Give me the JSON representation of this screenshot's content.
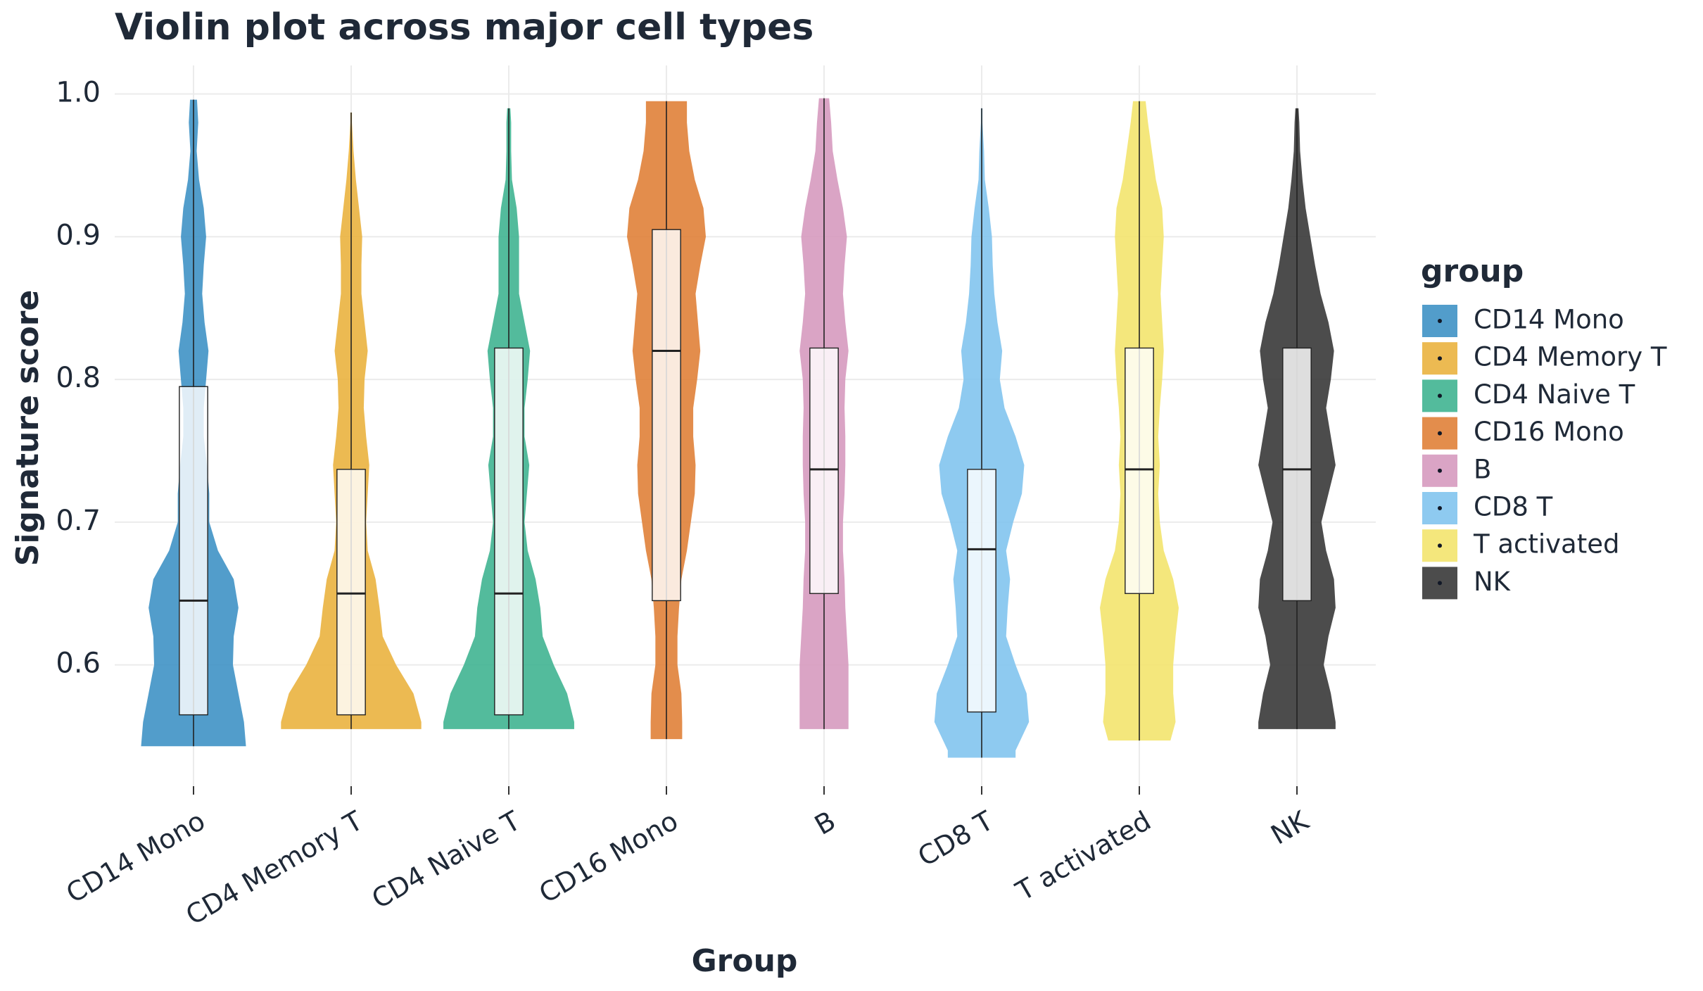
{
  "chart_data": {
    "type": "violin",
    "title": "Violin plot across major cell types",
    "x_label": "Group",
    "y_label": "Signature score",
    "legend_title": "group",
    "legend_position": "right",
    "grid": true,
    "categories": [
      "CD14 Mono",
      "CD4 Memory T",
      "CD4 Naive T",
      "CD16 Mono",
      "B",
      "CD8 T",
      "T activated",
      "NK"
    ],
    "ylim": [
      0.515,
      1.02
    ],
    "yticks": [
      0.6,
      0.7,
      0.8,
      0.9,
      {
        "value": 1.0,
        "label": "1.0"
      }
    ],
    "density_y": [
      0.54,
      0.56,
      0.58,
      0.6,
      0.62,
      0.64,
      0.66,
      0.68,
      0.7,
      0.72,
      0.74,
      0.76,
      0.78,
      0.8,
      0.82,
      0.84,
      0.86,
      0.88,
      0.9,
      0.92,
      0.94,
      0.96,
      0.98,
      1.0
    ],
    "series": [
      {
        "name": "CD14 Mono",
        "color": "#3a8fc4",
        "range": [
          0.543,
          0.996
        ],
        "box": [
          0.565,
          0.645,
          0.795
        ],
        "density": [
          0.67,
          0.64,
          0.57,
          0.5,
          0.51,
          0.57,
          0.51,
          0.31,
          0.2,
          0.2,
          0.17,
          0.13,
          0.13,
          0.16,
          0.19,
          0.14,
          0.11,
          0.13,
          0.16,
          0.13,
          0.07,
          0.04,
          0.06,
          0.04
        ]
      },
      {
        "name": "CD4 Memory T",
        "color": "#e9b13a",
        "range": [
          0.555,
          0.987
        ],
        "box": [
          0.565,
          0.65,
          0.737
        ],
        "density": [
          0.89,
          0.89,
          0.79,
          0.57,
          0.4,
          0.36,
          0.31,
          0.21,
          0.19,
          0.21,
          0.23,
          0.19,
          0.16,
          0.17,
          0.21,
          0.17,
          0.13,
          0.13,
          0.14,
          0.1,
          0.06,
          0.03,
          0.01,
          0.01
        ]
      },
      {
        "name": "CD4 Naive T",
        "color": "#3bb28e",
        "range": [
          0.555,
          0.99
        ],
        "box": [
          0.565,
          0.65,
          0.822
        ],
        "density": [
          0.83,
          0.83,
          0.74,
          0.57,
          0.43,
          0.4,
          0.34,
          0.24,
          0.2,
          0.23,
          0.26,
          0.2,
          0.2,
          0.24,
          0.27,
          0.2,
          0.13,
          0.13,
          0.13,
          0.1,
          0.04,
          0.03,
          0.03,
          0.01
        ]
      },
      {
        "name": "CD16 Mono",
        "color": "#df7d33",
        "range": [
          0.548,
          0.995
        ],
        "box": [
          0.645,
          0.82,
          0.905
        ],
        "density": [
          0.2,
          0.2,
          0.19,
          0.14,
          0.14,
          0.16,
          0.19,
          0.26,
          0.31,
          0.36,
          0.37,
          0.34,
          0.34,
          0.39,
          0.43,
          0.4,
          0.37,
          0.43,
          0.5,
          0.47,
          0.36,
          0.29,
          0.26,
          0.26
        ]
      },
      {
        "name": "B",
        "color": "#d597bd",
        "range": [
          0.555,
          0.997
        ],
        "box": [
          0.65,
          0.737,
          0.822
        ],
        "density": [
          0.31,
          0.31,
          0.31,
          0.31,
          0.29,
          0.27,
          0.26,
          0.24,
          0.24,
          0.26,
          0.27,
          0.27,
          0.26,
          0.27,
          0.31,
          0.27,
          0.24,
          0.26,
          0.29,
          0.24,
          0.17,
          0.11,
          0.09,
          0.06
        ]
      },
      {
        "name": "CD8 T",
        "color": "#7ec3ee",
        "range": [
          0.535,
          0.99
        ],
        "box": [
          0.567,
          0.681,
          0.737
        ],
        "density": [
          0.43,
          0.6,
          0.57,
          0.43,
          0.31,
          0.33,
          0.36,
          0.31,
          0.4,
          0.51,
          0.54,
          0.43,
          0.29,
          0.23,
          0.26,
          0.2,
          0.16,
          0.14,
          0.13,
          0.09,
          0.04,
          0.03,
          0.01,
          0.01
        ]
      },
      {
        "name": "T activated",
        "color": "#f2e46a",
        "range": [
          0.547,
          0.995
        ],
        "box": [
          0.65,
          0.737,
          0.822
        ],
        "density": [
          0.36,
          0.46,
          0.43,
          0.43,
          0.46,
          0.5,
          0.43,
          0.31,
          0.26,
          0.24,
          0.26,
          0.24,
          0.26,
          0.29,
          0.31,
          0.29,
          0.27,
          0.29,
          0.31,
          0.29,
          0.21,
          0.16,
          0.11,
          0.07
        ]
      },
      {
        "name": "NK",
        "color": "#333333",
        "range": [
          0.555,
          0.99
        ],
        "box": [
          0.645,
          0.737,
          0.822
        ],
        "density": [
          0.49,
          0.49,
          0.43,
          0.34,
          0.4,
          0.49,
          0.47,
          0.37,
          0.31,
          0.4,
          0.49,
          0.43,
          0.37,
          0.43,
          0.47,
          0.4,
          0.3,
          0.23,
          0.17,
          0.11,
          0.07,
          0.04,
          0.03,
          0.01
        ]
      }
    ]
  }
}
